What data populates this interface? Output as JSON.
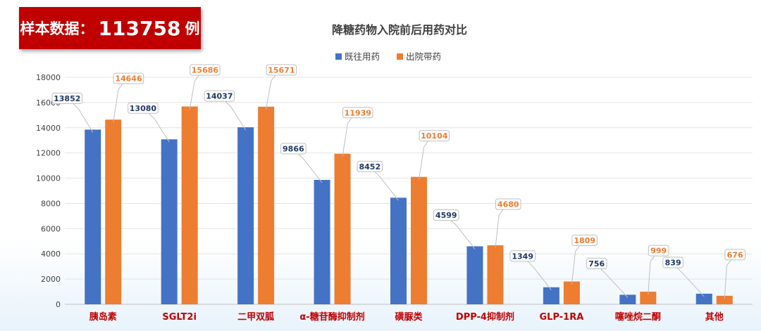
{
  "badge": {
    "label": "样本数据：",
    "count": "113758",
    "unit": "例"
  },
  "chart_data": {
    "type": "bar",
    "title": "降糖药物入院前后用药对比",
    "categories": [
      "胰岛素",
      "SGLT2i",
      "二甲双胍",
      "α-糖苷酶抑制剂",
      "磺脲类",
      "DPP-4抑制剂",
      "GLP-1RA",
      "噻唑烷二酮",
      "其他"
    ],
    "series": [
      {
        "name": "既往用药",
        "color": "#4472c4",
        "label_color": "#1f3864",
        "values": [
          13852,
          13080,
          14037,
          9866,
          8452,
          4599,
          1349,
          756,
          839
        ]
      },
      {
        "name": "出院带药",
        "color": "#ed7d31",
        "label_color": "#ed7d31",
        "values": [
          14646,
          15686,
          15671,
          11939,
          10104,
          4680,
          1809,
          999,
          676
        ]
      }
    ],
    "ylim": [
      0,
      18000
    ],
    "yticks": [
      0,
      2000,
      4000,
      6000,
      8000,
      10000,
      12000,
      14000,
      16000,
      18000
    ],
    "grid": true,
    "legend": "top-center",
    "category_label_color": "#c00000"
  }
}
